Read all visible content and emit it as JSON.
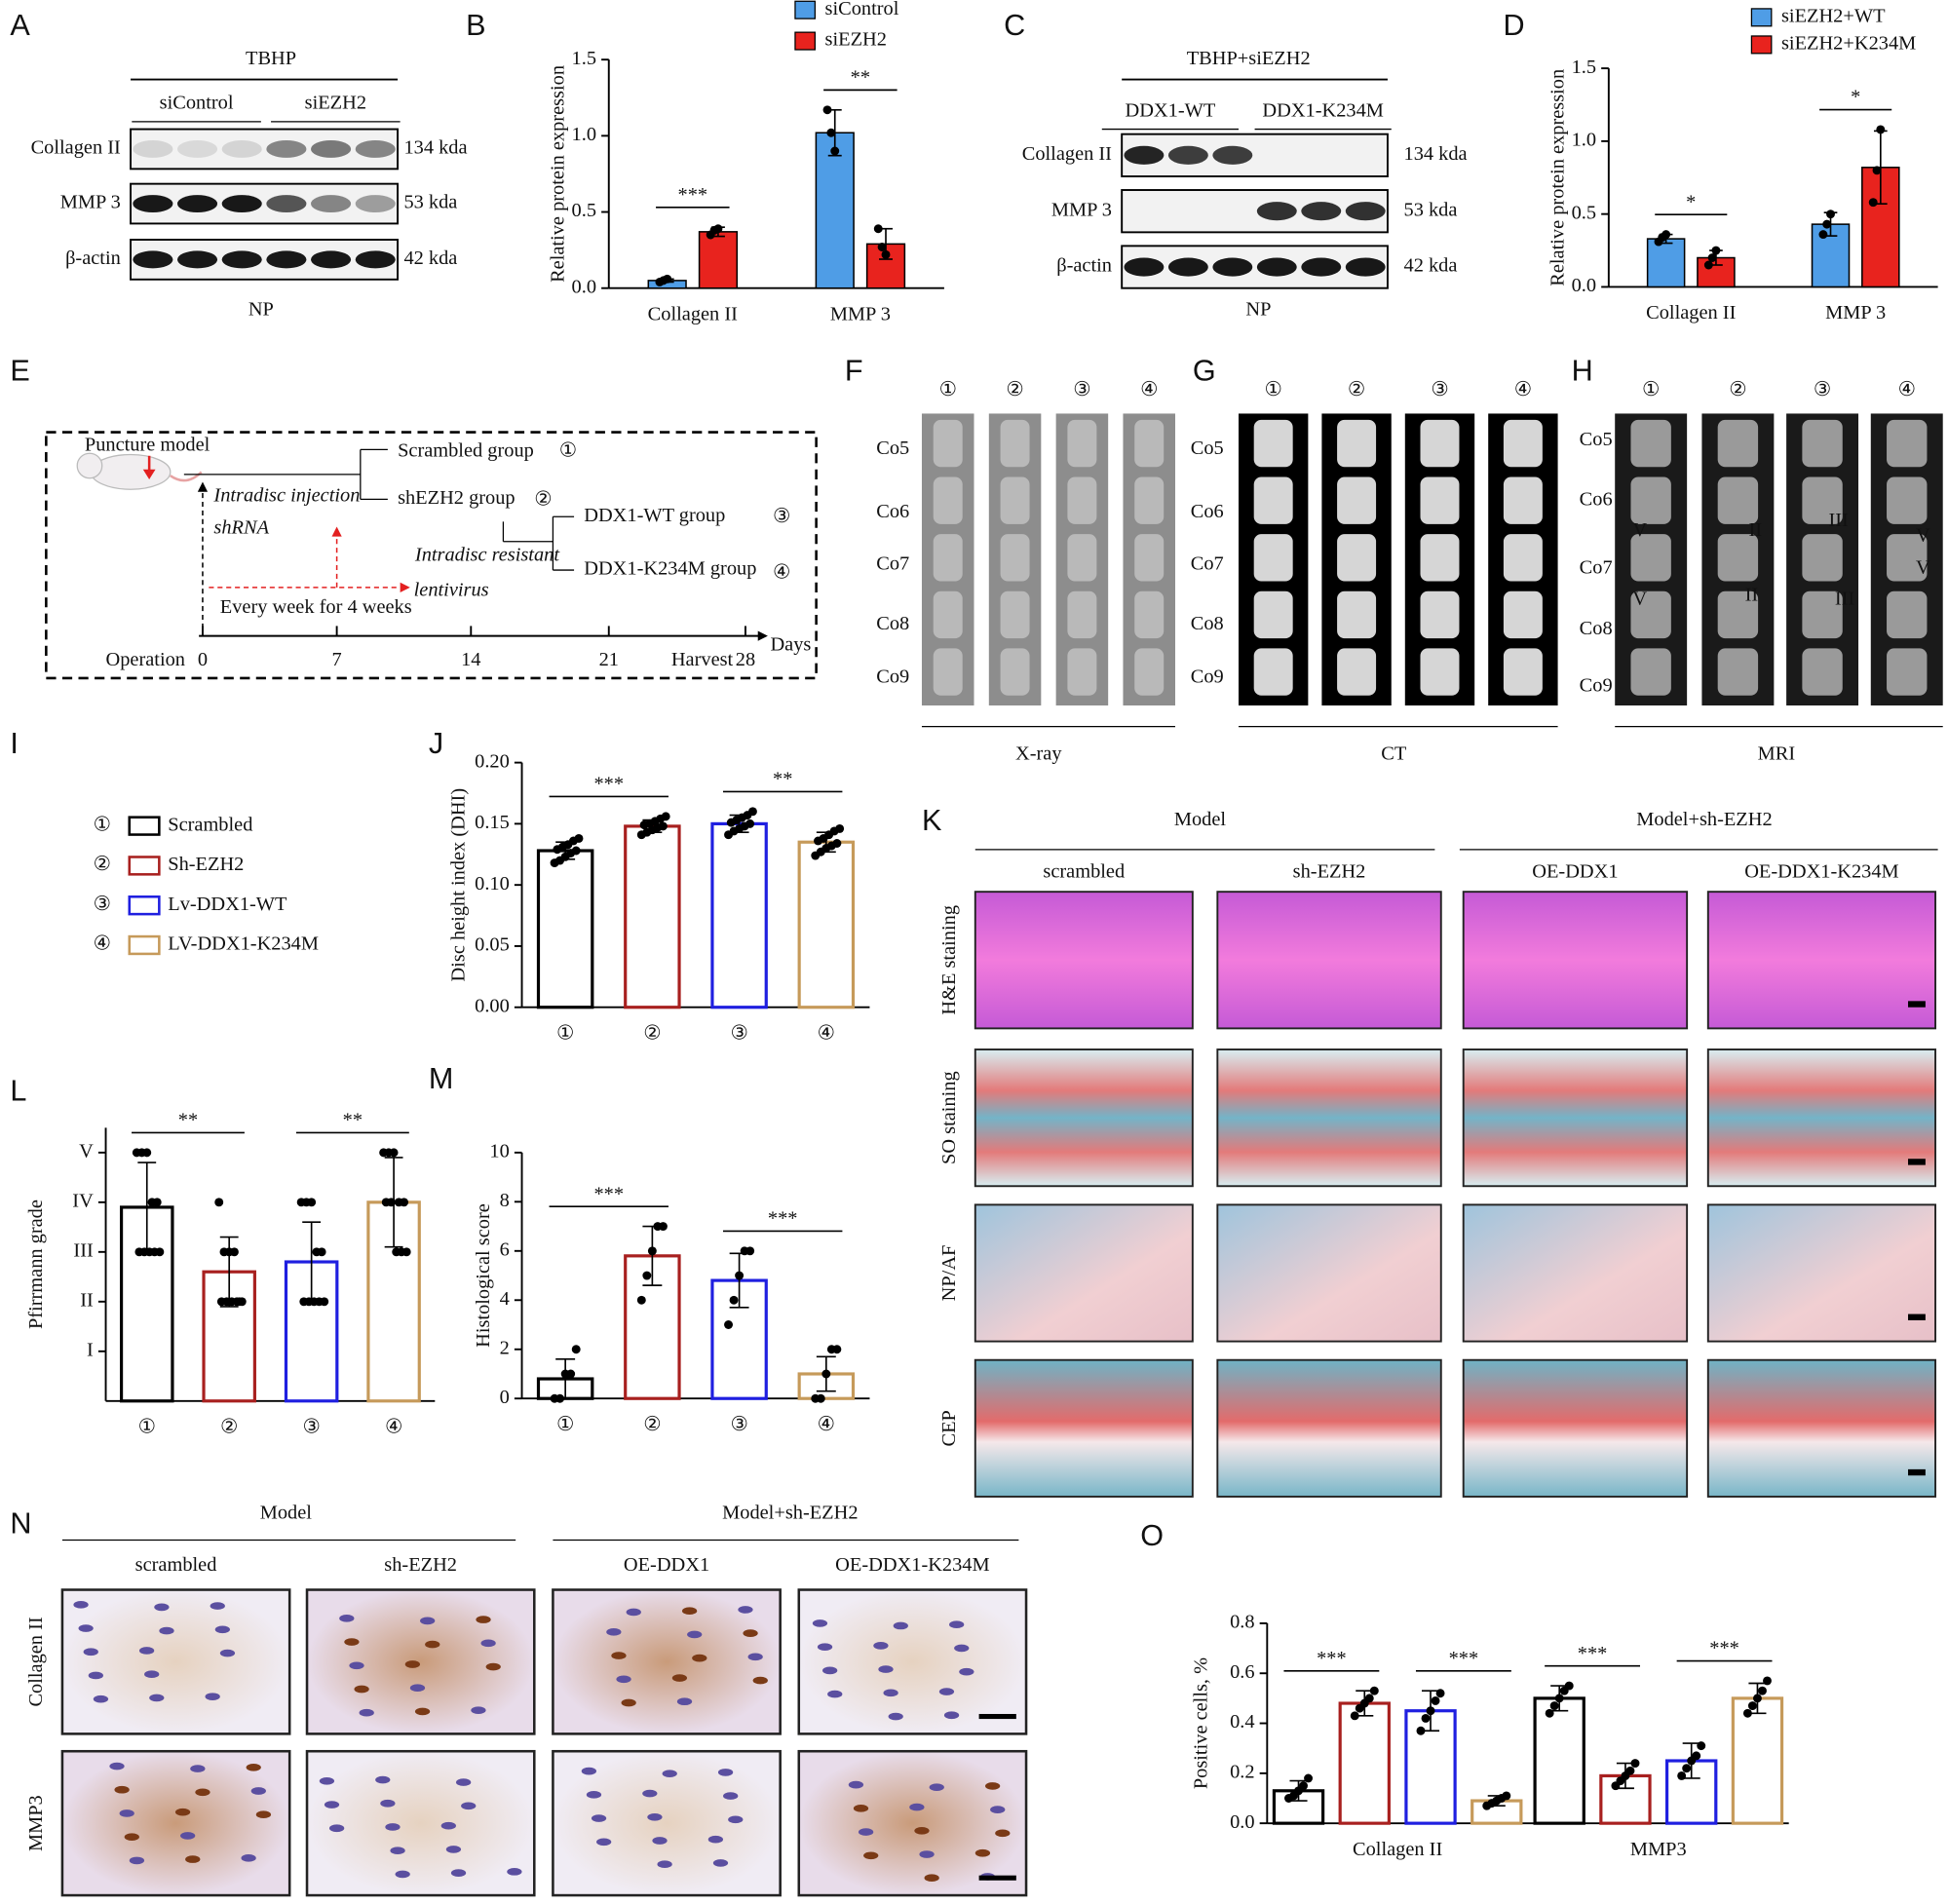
{
  "panel_labels": [
    "A",
    "B",
    "C",
    "D",
    "E",
    "F",
    "G",
    "H",
    "I",
    "J",
    "K",
    "L",
    "M",
    "N",
    "O"
  ],
  "blot_A": {
    "title": "TBHP",
    "groups": [
      "siControl",
      "siEZH2"
    ],
    "rows": [
      "Collagen II",
      "MMP 3",
      "β-actin"
    ],
    "sizes": [
      "134 kda",
      "53 kda",
      "42 kda"
    ],
    "caption": "NP"
  },
  "blot_C": {
    "title": "TBHP+siEZH2",
    "groups": [
      "DDX1-WT",
      "DDX1-K234M"
    ],
    "rows": [
      "Collagen II",
      "MMP 3",
      "β-actin"
    ],
    "sizes": [
      "134 kda",
      "53 kda",
      "42 kda"
    ],
    "caption": "NP"
  },
  "schematic_E": {
    "model": "Puncture model",
    "groups": [
      "Scrambled group",
      "shEZH2 group",
      "DDX1-WT group",
      "DDX1-K234M group"
    ],
    "group_markers": [
      "①",
      "②",
      "③",
      "④"
    ],
    "injection": "Intradisc injection",
    "shrna": "shRNA",
    "resistant": "Intradisc resistant",
    "lentivirus": "lentivirus",
    "schedule": "Every week for 4 weeks",
    "timeline_ticks": [
      "0",
      "7",
      "14",
      "21",
      "28"
    ],
    "operation": "Operation",
    "harvest": "Harvest",
    "days": "Days"
  },
  "imaging": {
    "markers": [
      "①",
      "②",
      "③",
      "④"
    ],
    "levels": [
      "Co5",
      "Co6",
      "Co7",
      "Co8",
      "Co9"
    ],
    "modalities": [
      "X-ray",
      "CT",
      "MRI"
    ],
    "mri_grades": [
      [
        "V",
        "V"
      ],
      [
        "II",
        "II"
      ],
      [
        "III",
        "III"
      ],
      [
        "V",
        "V"
      ]
    ]
  },
  "legend_I": {
    "items": [
      {
        "marker": "①",
        "name": "Scrambled",
        "color": "#000000"
      },
      {
        "marker": "②",
        "name": "Sh-EZH2",
        "color": "#a8201f"
      },
      {
        "marker": "③",
        "name": "Lv-DDX1-WT",
        "color": "#1f1fe0"
      },
      {
        "marker": "④",
        "name": "LV-DDX1-K234M",
        "color": "#c69a5a"
      }
    ]
  },
  "histology_K": {
    "groups": [
      "Model",
      "Model+sh-EZH2"
    ],
    "columns": [
      "scrambled",
      "sh-EZH2",
      "OE-DDX1",
      "OE-DDX1-K234M"
    ],
    "rows": [
      "H&E staining",
      "SO staining",
      "NP/AF",
      "CEP"
    ]
  },
  "ihc_N": {
    "groups": [
      "Model",
      "Model+sh-EZH2"
    ],
    "columns": [
      "scrambled",
      "sh-EZH2",
      "OE-DDX1",
      "OE-DDX1-K234M"
    ],
    "rows": [
      "Collagen II",
      "MMP3"
    ]
  },
  "chart_data": [
    {
      "type": "bar",
      "ylabel": "Relative protein expression",
      "categories": [
        "Collagen II",
        "MMP 3"
      ],
      "series": [
        {
          "name": "siControl",
          "color": "#4f9de6",
          "values": [
            0.05,
            1.02
          ],
          "errors": [
            0.01,
            0.15
          ],
          "points": [
            [
              0.04,
              0.05,
              0.06
            ],
            [
              1.17,
              1.02,
              0.9
            ]
          ]
        },
        {
          "name": "siEZH2",
          "color": "#e8231e",
          "values": [
            0.37,
            0.29
          ],
          "errors": [
            0.03,
            0.1
          ],
          "points": [
            [
              0.35,
              0.38,
              0.39
            ],
            [
              0.39,
              0.27,
              0.22
            ]
          ]
        }
      ],
      "ylim": [
        0,
        1.5
      ],
      "yticks": [
        {
          "value": 0,
          "label": "0.0"
        },
        {
          "value": 0.5,
          "label": "0.5"
        },
        {
          "value": 1,
          "label": "1.0"
        },
        {
          "value": 1.5,
          "label": "1.5"
        }
      ],
      "significance": [
        "***",
        "**"
      ]
    },
    {
      "type": "bar",
      "ylabel": "Relative protein expression",
      "categories": [
        "Collagen II",
        "MMP 3"
      ],
      "series": [
        {
          "name": "siEZH2+WT",
          "color": "#4f9de6",
          "values": [
            0.33,
            0.43
          ],
          "errors": [
            0.03,
            0.08
          ],
          "points": [
            [
              0.31,
              0.34,
              0.36
            ],
            [
              0.36,
              0.43,
              0.5
            ]
          ]
        },
        {
          "name": "siEZH2+K234M",
          "color": "#e8231e",
          "values": [
            0.2,
            0.82
          ],
          "errors": [
            0.05,
            0.25
          ],
          "points": [
            [
              0.15,
              0.2,
              0.25
            ],
            [
              0.58,
              0.8,
              1.08
            ]
          ]
        }
      ],
      "ylim": [
        0,
        1.5
      ],
      "yticks": [
        {
          "value": 0,
          "label": "0.0"
        },
        {
          "value": 0.5,
          "label": "0.5"
        },
        {
          "value": 1,
          "label": "1.0"
        },
        {
          "value": 1.5,
          "label": "1.5"
        }
      ],
      "significance": [
        "*",
        "*"
      ]
    },
    {
      "type": "bar",
      "style": "outline",
      "ylabel": "Disc height index (DHI)",
      "categories": [
        "①",
        "②",
        "③",
        "④"
      ],
      "series": [
        {
          "colors": [
            "#000000",
            "#a8201f",
            "#1f1fe0",
            "#c69a5a"
          ],
          "values": [
            0.128,
            0.148,
            0.15,
            0.135
          ],
          "errors": [
            0.007,
            0.005,
            0.007,
            0.008
          ],
          "points": [
            [
              0.118,
              0.12,
              0.123,
              0.126,
              0.128,
              0.129,
              0.131,
              0.133,
              0.136,
              0.138
            ],
            [
              0.141,
              0.143,
              0.145,
              0.147,
              0.148,
              0.149,
              0.15,
              0.152,
              0.154,
              0.156
            ],
            [
              0.141,
              0.144,
              0.146,
              0.148,
              0.15,
              0.151,
              0.153,
              0.155,
              0.157,
              0.16
            ],
            [
              0.124,
              0.127,
              0.13,
              0.132,
              0.134,
              0.136,
              0.138,
              0.141,
              0.144,
              0.146
            ]
          ]
        }
      ],
      "ylim": [
        0,
        0.2
      ],
      "yticks": [
        {
          "value": 0,
          "label": "0.00"
        },
        {
          "value": 0.05,
          "label": "0.05"
        },
        {
          "value": 0.1,
          "label": "0.10"
        },
        {
          "value": 0.15,
          "label": "0.15"
        },
        {
          "value": 0.2,
          "label": "0.20"
        }
      ],
      "significance": [
        "***",
        "**"
      ]
    },
    {
      "type": "bar",
      "style": "outline",
      "ylabel": "Pfirrmann grade",
      "categories": [
        "①",
        "②",
        "③",
        "④"
      ],
      "series": [
        {
          "colors": [
            "#000000",
            "#a8201f",
            "#1f1fe0",
            "#c69a5a"
          ],
          "values": [
            3.9,
            2.6,
            2.8,
            4.0
          ],
          "errors": [
            0.9,
            0.7,
            0.8,
            0.9
          ],
          "points": [
            [
              5,
              5,
              5,
              4,
              4,
              3,
              3,
              3,
              3,
              3
            ],
            [
              4,
              3,
              3,
              3,
              2,
              2,
              2,
              2,
              2,
              2
            ],
            [
              4,
              4,
              4,
              3,
              3,
              2,
              2,
              2,
              2,
              2
            ],
            [
              5,
              5,
              5,
              4,
              4,
              4,
              4,
              3,
              3,
              3
            ]
          ]
        }
      ],
      "ylim": [
        0,
        5.5
      ],
      "yticks": [
        {
          "value": 1,
          "label": "I"
        },
        {
          "value": 2,
          "label": "II"
        },
        {
          "value": 3,
          "label": "III"
        },
        {
          "value": 4,
          "label": "IV"
        },
        {
          "value": 5,
          "label": "V"
        }
      ],
      "significance": [
        "**",
        "**"
      ]
    },
    {
      "type": "bar",
      "style": "outline",
      "ylabel": "Histological score",
      "categories": [
        "①",
        "②",
        "③",
        "④"
      ],
      "series": [
        {
          "colors": [
            "#000000",
            "#a8201f",
            "#1f1fe0",
            "#c69a5a"
          ],
          "values": [
            0.8,
            5.8,
            4.8,
            1.0
          ],
          "errors": [
            0.8,
            1.2,
            1.1,
            0.7
          ],
          "points": [
            [
              0,
              0,
              1,
              1,
              2
            ],
            [
              4,
              5,
              6,
              7,
              7
            ],
            [
              3,
              4,
              5,
              6,
              6
            ],
            [
              0,
              0,
              1,
              2,
              2
            ]
          ]
        }
      ],
      "ylim": [
        0,
        10
      ],
      "yticks": [
        0,
        2,
        4,
        6,
        8,
        10
      ],
      "significance": [
        "***",
        "***"
      ]
    },
    {
      "type": "bar",
      "style": "outline",
      "ylabel": "Positive cells, %",
      "categories": [
        "Collagen II",
        "MMP3"
      ],
      "series": [
        {
          "color": "#000000",
          "values": [
            0.13,
            0.5
          ],
          "errors": [
            0.04,
            0.05
          ],
          "points": [
            [
              0.1,
              0.11,
              0.13,
              0.15,
              0.18
            ],
            [
              0.44,
              0.47,
              0.5,
              0.53,
              0.55
            ]
          ]
        },
        {
          "color": "#a8201f",
          "values": [
            0.48,
            0.19
          ],
          "errors": [
            0.05,
            0.05
          ],
          "points": [
            [
              0.43,
              0.46,
              0.48,
              0.5,
              0.53
            ],
            [
              0.15,
              0.17,
              0.19,
              0.21,
              0.24
            ]
          ]
        },
        {
          "color": "#1f1fe0",
          "values": [
            0.45,
            0.25
          ],
          "errors": [
            0.08,
            0.07
          ],
          "points": [
            [
              0.37,
              0.42,
              0.45,
              0.49,
              0.52
            ],
            [
              0.19,
              0.22,
              0.25,
              0.27,
              0.31
            ]
          ]
        },
        {
          "color": "#c69a5a",
          "values": [
            0.09,
            0.5
          ],
          "errors": [
            0.02,
            0.06
          ],
          "points": [
            [
              0.07,
              0.08,
              0.09,
              0.1,
              0.11
            ],
            [
              0.44,
              0.47,
              0.5,
              0.53,
              0.57
            ]
          ]
        }
      ],
      "ylim": [
        0,
        0.8
      ],
      "yticks": [
        {
          "value": 0,
          "label": "0.0"
        },
        {
          "value": 0.2,
          "label": "0.2"
        },
        {
          "value": 0.4,
          "label": "0.4"
        },
        {
          "value": 0.6,
          "label": "0.6"
        },
        {
          "value": 0.8,
          "label": "0.8"
        }
      ],
      "significance": [
        [
          "***",
          "***"
        ],
        [
          "***",
          "***"
        ]
      ]
    }
  ]
}
